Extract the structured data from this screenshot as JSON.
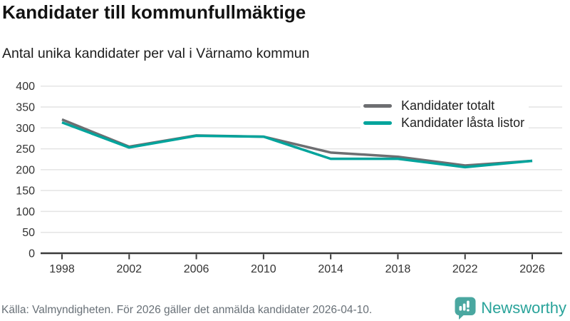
{
  "header": {
    "title": "Kandidater till kommunfullmäktige",
    "subtitle": "Antal unika kandidater per val i Värnamo kommun"
  },
  "chart_data": {
    "type": "line",
    "categories": [
      "1998",
      "2002",
      "2006",
      "2010",
      "2014",
      "2018",
      "2022",
      "2026"
    ],
    "series": [
      {
        "name": "Kandidater totalt",
        "color": "#6d6e71",
        "values": [
          320,
          255,
          282,
          279,
          241,
          231,
          210,
          221
        ]
      },
      {
        "name": "Kandidater låsta listor",
        "color": "#00a49c",
        "values": [
          313,
          253,
          281,
          279,
          226,
          226,
          206,
          221
        ]
      }
    ],
    "title": "Kandidater till kommunfullmäktige",
    "subtitle": "Antal unika kandidater per val i Värnamo kommun",
    "xlabel": "",
    "ylabel": "",
    "ylim": [
      0,
      400
    ],
    "yticks": [
      0,
      50,
      100,
      150,
      200,
      250,
      300,
      350,
      400
    ],
    "grid": true,
    "legend_position": "top-right"
  },
  "footer": {
    "source": "Källa: Valmyndigheten. För 2026 gäller det anmälda kandidater 2026-04-10.",
    "brand": "Newsworthy"
  },
  "colors": {
    "series_total": "#6d6e71",
    "series_locked": "#00a49c",
    "gridline": "#e4e4e4",
    "axis": "#3b3b3b",
    "tick_label": "#333333",
    "footer_text": "#687077",
    "brand_teal": "#29a39a",
    "brand_icon": "#4aa7a0"
  }
}
